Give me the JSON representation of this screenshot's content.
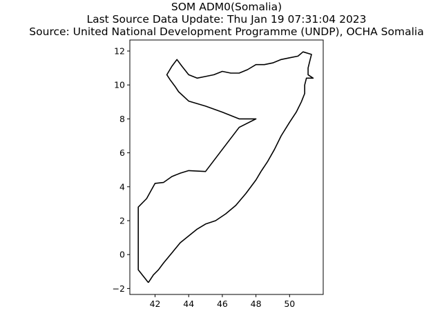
{
  "title": {
    "line1": "SOM ADM0(Somalia)",
    "line2": "Last Source Data Update: Thu Jan 19 07:31:04 2023",
    "line3": "Source: United National Development Programme (UNDP), OCHA Somalia"
  },
  "map": {
    "region": "Somalia",
    "boundary_color": "#000000",
    "x_ticks": [
      42,
      44,
      46,
      48,
      50
    ],
    "y_ticks": [
      -2,
      0,
      2,
      4,
      6,
      8,
      10,
      12
    ],
    "x_range": [
      40.5,
      52.0
    ],
    "y_range": [
      -2.35,
      12.65
    ],
    "boundary_lonlat": [
      [
        41.6,
        -1.65
      ],
      [
        41.0,
        -0.9
      ],
      [
        41.0,
        2.8
      ],
      [
        41.5,
        3.3
      ],
      [
        42.0,
        4.2
      ],
      [
        42.5,
        4.25
      ],
      [
        43.0,
        4.6
      ],
      [
        43.5,
        4.8
      ],
      [
        44.0,
        4.95
      ],
      [
        45.0,
        4.9
      ],
      [
        46.0,
        6.2
      ],
      [
        47.0,
        7.5
      ],
      [
        48.0,
        8.0
      ],
      [
        47.0,
        8.0
      ],
      [
        46.0,
        8.4
      ],
      [
        45.0,
        8.75
      ],
      [
        44.0,
        9.05
      ],
      [
        43.4,
        9.6
      ],
      [
        43.2,
        9.9
      ],
      [
        42.9,
        10.3
      ],
      [
        42.7,
        10.6
      ],
      [
        43.0,
        11.1
      ],
      [
        43.3,
        11.5
      ],
      [
        43.6,
        11.1
      ],
      [
        44.0,
        10.6
      ],
      [
        44.5,
        10.4
      ],
      [
        45.0,
        10.5
      ],
      [
        45.5,
        10.6
      ],
      [
        46.0,
        10.8
      ],
      [
        46.5,
        10.7
      ],
      [
        47.0,
        10.7
      ],
      [
        47.5,
        10.9
      ],
      [
        48.0,
        11.2
      ],
      [
        48.5,
        11.2
      ],
      [
        49.0,
        11.3
      ],
      [
        49.5,
        11.5
      ],
      [
        50.0,
        11.6
      ],
      [
        50.5,
        11.7
      ],
      [
        50.8,
        11.95
      ],
      [
        51.3,
        11.8
      ],
      [
        51.2,
        11.4
      ],
      [
        51.1,
        11.0
      ],
      [
        51.1,
        10.6
      ],
      [
        51.4,
        10.4
      ],
      [
        51.0,
        10.4
      ],
      [
        50.9,
        10.0
      ],
      [
        50.9,
        9.5
      ],
      [
        50.7,
        9.0
      ],
      [
        50.4,
        8.4
      ],
      [
        50.0,
        7.8
      ],
      [
        49.5,
        7.0
      ],
      [
        49.1,
        6.2
      ],
      [
        48.7,
        5.5
      ],
      [
        48.3,
        4.9
      ],
      [
        48.0,
        4.4
      ],
      [
        47.4,
        3.6
      ],
      [
        46.8,
        2.9
      ],
      [
        46.2,
        2.4
      ],
      [
        45.6,
        2.0
      ],
      [
        45.0,
        1.8
      ],
      [
        44.5,
        1.5
      ],
      [
        44.0,
        1.1
      ],
      [
        43.5,
        0.7
      ],
      [
        43.0,
        0.1
      ],
      [
        42.5,
        -0.5
      ],
      [
        42.2,
        -0.9
      ],
      [
        41.9,
        -1.2
      ],
      [
        41.6,
        -1.65
      ]
    ]
  }
}
